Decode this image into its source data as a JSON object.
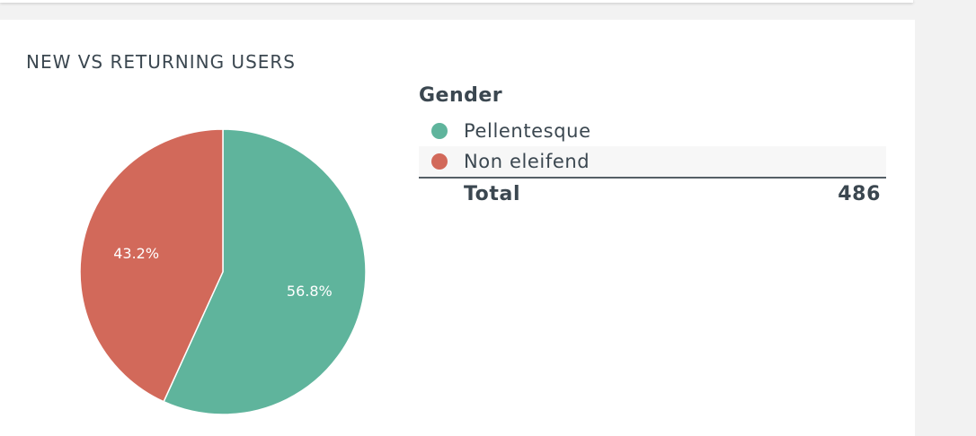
{
  "card": {
    "title": "NEW VS RETURNING USERS"
  },
  "chart_data": {
    "type": "pie",
    "title": "NEW VS RETURNING USERS",
    "categories": [
      "Pellentesque",
      "Non eleifend"
    ],
    "values": [
      56.8,
      43.2
    ],
    "value_labels": [
      "56.8%",
      "43.2%"
    ],
    "colors": [
      "#5fb49c",
      "#d2695a"
    ],
    "legend_placement": "right"
  },
  "legend": {
    "heading": "Gender",
    "items": [
      {
        "label": "Pellentesque",
        "color": "#5fb49c"
      },
      {
        "label": "Non eleifend",
        "color": "#d2695a"
      }
    ],
    "total_label": "Total",
    "total_value": "486"
  }
}
